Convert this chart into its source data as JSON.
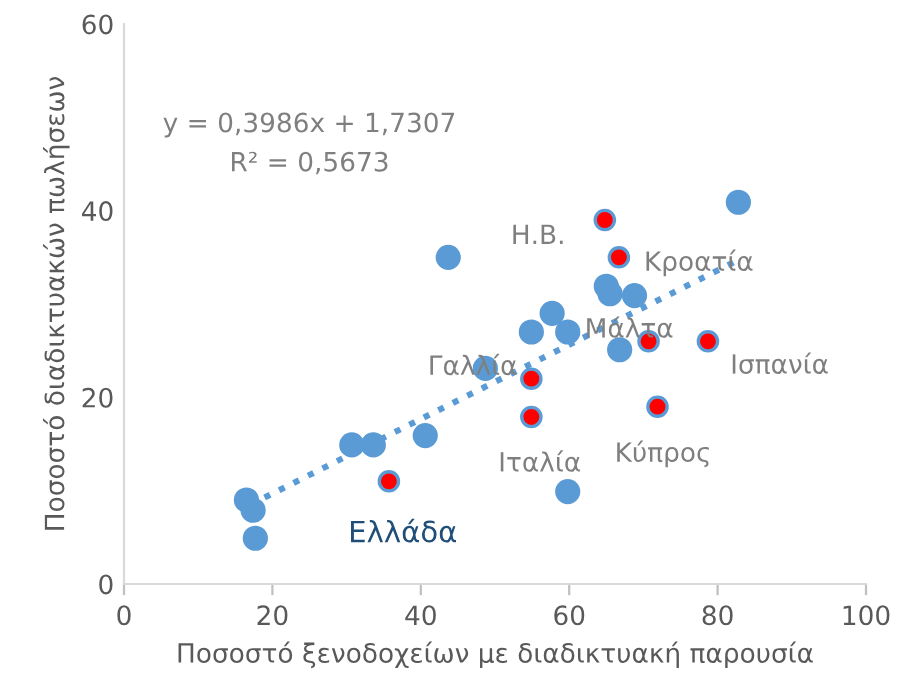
{
  "chart_data": {
    "type": "scatter",
    "xlabel": "Ποσοστό ξενοδοχείων με διαδικτυακή παρουσία",
    "ylabel": "Ποσοστό διαδικτυακών πωλήσεων",
    "xlim": [
      0,
      100
    ],
    "xticks": [
      0,
      20,
      40,
      60,
      80,
      100
    ],
    "ylim": [
      0,
      60
    ],
    "yticks": [
      0,
      20,
      40,
      60
    ],
    "grid": false,
    "legend": false,
    "marker": "circle",
    "series": [
      {
        "color": "#5b9bd5",
        "x": [
          82.8,
          43.7,
          65,
          65.5,
          68.8,
          57.7,
          54.9,
          59.8,
          66.8,
          48.7,
          40.6,
          30.7,
          33.6,
          59.8,
          16.5,
          17.4,
          17.7
        ],
        "values": [
          40.9,
          35,
          31.9,
          31.1,
          30.9,
          29,
          27,
          27,
          25.1,
          23.1,
          15.9,
          14.9,
          14.9,
          9.9,
          9,
          7.9,
          4.9
        ]
      },
      {
        "color": "#ff0000",
        "x": [
          64.8,
          66.7,
          70.7,
          78.7,
          54.9,
          54.9,
          71.9,
          35.7
        ],
        "values": [
          39,
          35,
          26,
          26,
          22,
          17.9,
          19,
          11
        ]
      },
      {
        "type": "line",
        "marker": "none",
        "color": "#5b9bd5",
        "line_style": "dotted",
        "x": [
          17,
          83
        ],
        "values": [
          8.5,
          34.8
        ]
      }
    ],
    "annotations": [
      {
        "text": "Η.Β.",
        "x": 64.8,
        "y": 39
      },
      {
        "text": "Κροατία",
        "x": 66.7,
        "y": 35
      },
      {
        "text": "Μάλτα",
        "x": 70.7,
        "y": 26
      },
      {
        "text": "Ισπανία",
        "x": 78.7,
        "y": 26
      },
      {
        "text": "Γαλλία",
        "x": 54.9,
        "y": 22
      },
      {
        "text": "Ιταλία",
        "x": 54.9,
        "y": 17.9
      },
      {
        "text": "Κύπρος",
        "x": 71.9,
        "y": 19
      },
      {
        "text": "Ελλάδα",
        "x": 35.7,
        "y": 11
      },
      "y = 0,3986x + 1,7307",
      "R² = 0,5673"
    ]
  }
}
